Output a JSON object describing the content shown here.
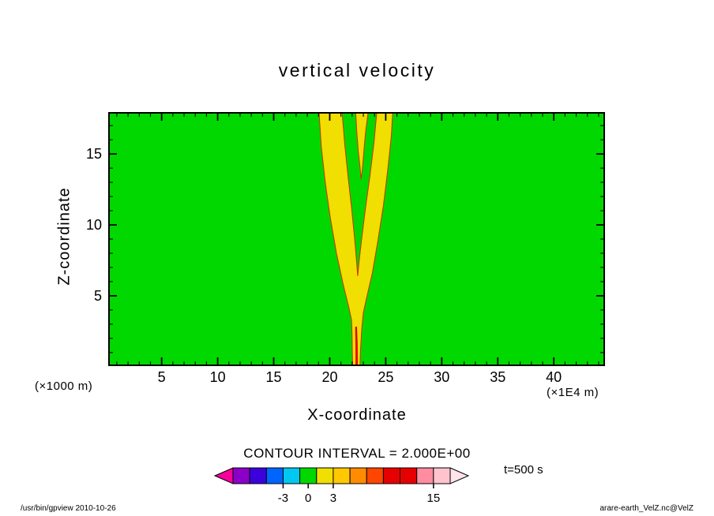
{
  "footer": {
    "left": "/usr/bin/gpview   2010-10-26",
    "right": "arare-earth_VelZ.nc@VelZ"
  },
  "chart_data": {
    "type": "contour-shade",
    "title": "vertical velocity",
    "xlabel": "X-coordinate",
    "ylabel": "Z-coordinate",
    "x_unit_label": "(×1E4 m)",
    "y_unit_label": "(×1000 m)",
    "xlim": [
      0.3,
      44.5
    ],
    "ylim": [
      0.1,
      17.9
    ],
    "x_major_ticks": [
      5,
      10,
      15,
      20,
      25,
      30,
      35,
      40
    ],
    "y_major_ticks": [
      5,
      10,
      15
    ],
    "minor_tick_step": 1,
    "contour_interval": 2.0,
    "contour_interval_label": "CONTOUR INTERVAL = 2.000E+00",
    "time_label": "t=500 s",
    "field_background": {
      "value_range": [
        -1,
        1
      ],
      "color": "#00D800"
    },
    "updraft_regions": {
      "description": "yellow shaded updraft plumes, value range 1 to 3",
      "fill": "#F0DF00",
      "stroke": "#D03000",
      "outer_polygon": [
        [
          19.05,
          17.9
        ],
        [
          19.25,
          15.5
        ],
        [
          19.6,
          13.0
        ],
        [
          20.05,
          10.5
        ],
        [
          20.6,
          8.0
        ],
        [
          21.2,
          5.8
        ],
        [
          21.7,
          4.2
        ],
        [
          21.95,
          3.3
        ],
        [
          22.0,
          2.2
        ],
        [
          22.02,
          1.0
        ],
        [
          22.05,
          0.12
        ],
        [
          22.7,
          0.12
        ],
        [
          22.75,
          1.2
        ],
        [
          22.85,
          2.6
        ],
        [
          23.0,
          3.8
        ],
        [
          23.3,
          4.9
        ],
        [
          23.8,
          6.6
        ],
        [
          24.3,
          8.9
        ],
        [
          24.8,
          11.4
        ],
        [
          25.2,
          14.0
        ],
        [
          25.5,
          16.3
        ],
        [
          25.62,
          17.9
        ],
        [
          24.2,
          17.9
        ],
        [
          23.95,
          15.8
        ],
        [
          23.6,
          13.5
        ],
        [
          23.2,
          11.2
        ],
        [
          22.85,
          9.0
        ],
        [
          22.62,
          7.4
        ],
        [
          22.5,
          6.4
        ],
        [
          22.38,
          7.6
        ],
        [
          22.2,
          9.2
        ],
        [
          21.95,
          11.2
        ],
        [
          21.65,
          13.3
        ],
        [
          21.35,
          15.6
        ],
        [
          21.1,
          17.9
        ]
      ],
      "middle_polygon": [
        [
          22.32,
          17.9
        ],
        [
          22.42,
          16.5
        ],
        [
          22.55,
          15.2
        ],
        [
          22.72,
          14.0
        ],
        [
          22.8,
          13.2
        ],
        [
          22.92,
          14.0
        ],
        [
          23.05,
          15.2
        ],
        [
          23.2,
          16.5
        ],
        [
          23.42,
          17.9
        ]
      ],
      "core": {
        "description": "narrow high-value core near surface",
        "color": "#E60000",
        "polygon": [
          [
            22.3,
            2.8
          ],
          [
            22.33,
            1.5
          ],
          [
            22.33,
            0.12
          ],
          [
            22.48,
            0.12
          ],
          [
            22.46,
            1.6
          ],
          [
            22.41,
            2.8
          ]
        ]
      }
    },
    "colorbar": {
      "min": -9,
      "max": 17,
      "left_arrow_color": "#F5009B",
      "right_arrow_color": "#FFE4EA",
      "tick_labels": [
        {
          "value": -3,
          "label": "-3"
        },
        {
          "value": 0,
          "label": "0"
        },
        {
          "value": 3,
          "label": "3"
        },
        {
          "value": 15,
          "label": "15"
        }
      ],
      "segments": [
        {
          "from": -9,
          "to": -7,
          "color": "#8A00C8"
        },
        {
          "from": -7,
          "to": -5,
          "color": "#3C00DC"
        },
        {
          "from": -5,
          "to": -3,
          "color": "#0064FF"
        },
        {
          "from": -3,
          "to": -1,
          "color": "#00C8F0"
        },
        {
          "from": -1,
          "to": 1,
          "color": "#00D800"
        },
        {
          "from": 1,
          "to": 3,
          "color": "#F0DF00"
        },
        {
          "from": 3,
          "to": 5,
          "color": "#FFC800"
        },
        {
          "from": 5,
          "to": 7,
          "color": "#FF8C00"
        },
        {
          "from": 7,
          "to": 9,
          "color": "#FF4600"
        },
        {
          "from": 9,
          "to": 11,
          "color": "#E60000"
        },
        {
          "from": 11,
          "to": 13,
          "color": "#E60000"
        },
        {
          "from": 13,
          "to": 15,
          "color": "#FF8CA0"
        },
        {
          "from": 15,
          "to": 17,
          "color": "#FFC3CE"
        }
      ]
    }
  }
}
